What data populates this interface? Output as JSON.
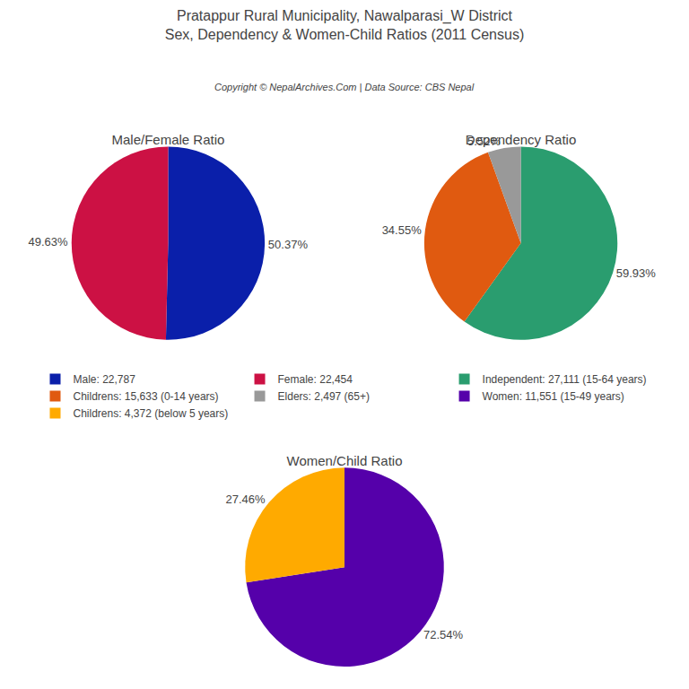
{
  "title": "Pratappur Rural Municipality, Nawalparasi_W District",
  "subtitle": "Sex, Dependency & Women-Child Ratios (2011 Census)",
  "annotations": [
    "Copyright © NepalArchives.Com | Data Source: CBS Nepal"
  ],
  "chart_data": [
    {
      "type": "pie",
      "title": "Male/Female Ratio",
      "categories": [
        "Male: 22,787",
        "Female: 22,454"
      ],
      "values": [
        50.37,
        49.63
      ],
      "value_labels": [
        "50.37%",
        "49.63%"
      ],
      "colors": [
        "#0a1faa",
        "#cc1144"
      ],
      "data_labels": true,
      "legend": "center"
    },
    {
      "type": "pie",
      "title": "Dependency Ratio",
      "categories": [
        "Independent: 27,111 (15-64 years)",
        "Childrens: 15,633 (0-14 years)",
        "Elders: 2,497 (65+)"
      ],
      "values": [
        59.93,
        34.55,
        5.52
      ],
      "value_labels": [
        "59.93%",
        "34.55%",
        "5.52%"
      ],
      "colors": [
        "#2a9d6f",
        "#e05a10",
        "#999999"
      ],
      "data_labels": true,
      "legend": "center"
    },
    {
      "type": "pie",
      "title": "Women/Child Ratio",
      "categories": [
        "Women: 11,551 (15-49 years)",
        "Childrens: 4,372 (below 5 years)"
      ],
      "values": [
        72.54,
        27.46
      ],
      "value_labels": [
        "72.54%",
        "27.46%"
      ],
      "colors": [
        "#5500aa",
        "#ffaa00"
      ],
      "data_labels": true,
      "legend": "center"
    }
  ]
}
